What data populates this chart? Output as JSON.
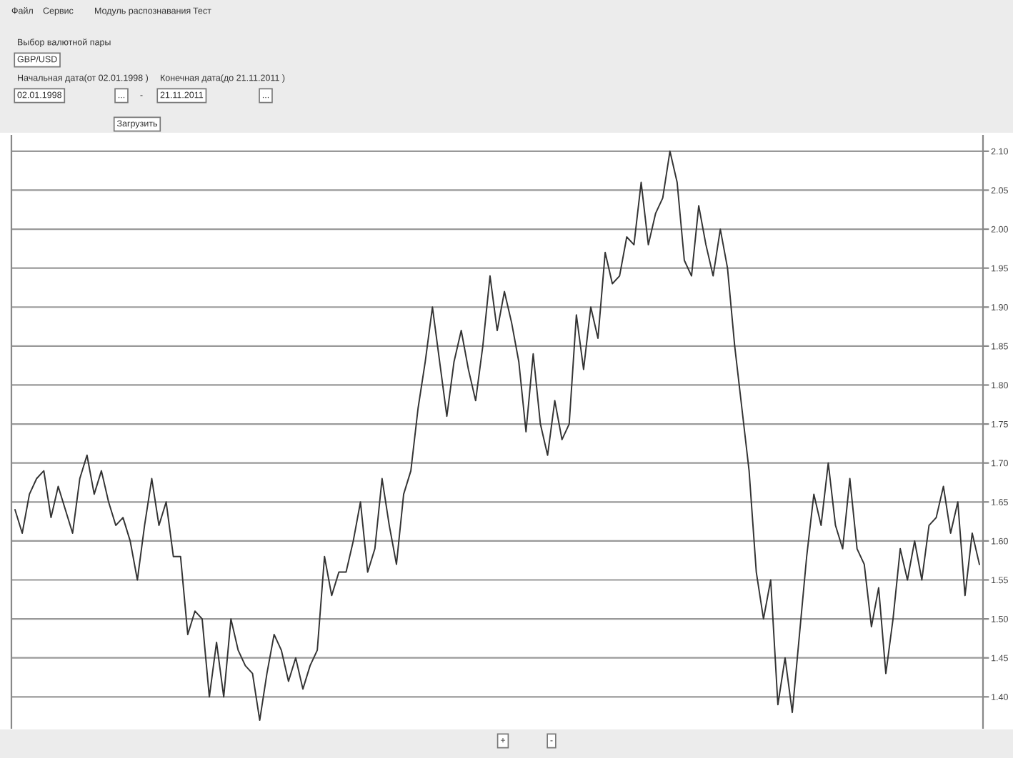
{
  "chart_data": {
    "type": "line",
    "categories": [
      null,
      null,
      null,
      null,
      null,
      null,
      null,
      null,
      null,
      null,
      null,
      null,
      null,
      null,
      null,
      null,
      null,
      null,
      null,
      null,
      null,
      null,
      null,
      null,
      null,
      null,
      null,
      null,
      null,
      null,
      null,
      null,
      null,
      null,
      null,
      null,
      null,
      null,
      null,
      null,
      null,
      null,
      null,
      null,
      null,
      null,
      null,
      null,
      null,
      null,
      null,
      null,
      null,
      null,
      null,
      null,
      null,
      null,
      null,
      null,
      null,
      null,
      null,
      null,
      null,
      null,
      null,
      null,
      null,
      null,
      null,
      null,
      null,
      null,
      null,
      null,
      null,
      null,
      null,
      null,
      null,
      null,
      null,
      null,
      null,
      null,
      null,
      null,
      null,
      null,
      null,
      null,
      null,
      null,
      null,
      null,
      null,
      null,
      null,
      null,
      null,
      null,
      null,
      null,
      null,
      null,
      null,
      null,
      null,
      null,
      null,
      null,
      null,
      null,
      null,
      null,
      null,
      null,
      null,
      null,
      null,
      null,
      null,
      null,
      null,
      null,
      null,
      null,
      null,
      null,
      null,
      null,
      null,
      null,
      null
    ],
    "series": [
      {
        "color": "#333333",
        "values": [
          1.64,
          1.61,
          1.66,
          1.68,
          1.69,
          1.63,
          1.67,
          1.64,
          1.61,
          1.68,
          1.71,
          1.66,
          1.69,
          1.65,
          1.62,
          1.63,
          1.6,
          1.55,
          1.62,
          1.68,
          1.62,
          1.65,
          1.58,
          1.58,
          1.48,
          1.51,
          1.5,
          1.4,
          1.47,
          1.4,
          1.5,
          1.46,
          1.44,
          1.43,
          1.37,
          1.43,
          1.48,
          1.46,
          1.42,
          1.45,
          1.41,
          1.44,
          1.46,
          1.58,
          1.53,
          1.56,
          1.56,
          1.6,
          1.65,
          1.56,
          1.59,
          1.68,
          1.62,
          1.57,
          1.66,
          1.69,
          1.77,
          1.83,
          1.9,
          1.83,
          1.76,
          1.83,
          1.87,
          1.82,
          1.78,
          1.85,
          1.94,
          1.87,
          1.92,
          1.88,
          1.83,
          1.74,
          1.84,
          1.75,
          1.71,
          1.78,
          1.73,
          1.75,
          1.89,
          1.82,
          1.9,
          1.86,
          1.97,
          1.93,
          1.94,
          1.99,
          1.98,
          2.06,
          1.98,
          2.02,
          2.04,
          2.1,
          2.06,
          1.96,
          1.94,
          2.03,
          1.98,
          1.94,
          2.0,
          1.95,
          1.85,
          1.77,
          1.69,
          1.56,
          1.5,
          1.55,
          1.39,
          1.45,
          1.38,
          1.48,
          1.58,
          1.66,
          1.62,
          1.7,
          1.62,
          1.59,
          1.68,
          1.59,
          1.57,
          1.49,
          1.54,
          1.43,
          1.5,
          1.59,
          1.55,
          1.6,
          1.55,
          1.62,
          1.63,
          1.67,
          1.61,
          1.65,
          1.53,
          1.61,
          1.57
        ]
      }
    ],
    "ylim": [
      1.36,
      2.12
    ],
    "yticks": [
      {
        "value": 1.4,
        "label": "1.40"
      },
      {
        "value": 1.45,
        "label": "1.45"
      },
      {
        "value": 1.5,
        "label": "1.50"
      },
      {
        "value": 1.55,
        "label": "1.55"
      },
      {
        "value": 1.6,
        "label": "1.60"
      },
      {
        "value": 1.65,
        "label": "1.65"
      },
      {
        "value": 1.7,
        "label": "1.70"
      },
      {
        "value": 1.75,
        "label": "1.75"
      },
      {
        "value": 1.8,
        "label": "1.80"
      },
      {
        "value": 1.85,
        "label": "1.85"
      },
      {
        "value": 1.9,
        "label": "1.90"
      },
      {
        "value": 1.95,
        "label": "1.95"
      },
      {
        "value": 2.0,
        "label": "2.00"
      },
      {
        "value": 2.05,
        "label": "2.05"
      },
      {
        "value": 2.1,
        "label": "2.10"
      }
    ],
    "tick_labels": "y",
    "grid": "y",
    "marker": "none",
    "line_style": "solid",
    "annotations": [
      "Файл",
      "Сервис",
      "Модуль распознавания",
      "Тест",
      "Выбор валютной пары",
      "GBP/USD",
      "Начальная дата(от 02.01.1998 )",
      "02.01.1998",
      "...",
      "-",
      "Конечная дата(до 21.11.2011 )",
      "21.11.2011",
      "...",
      "Загрузить",
      "+",
      "-"
    ]
  }
}
